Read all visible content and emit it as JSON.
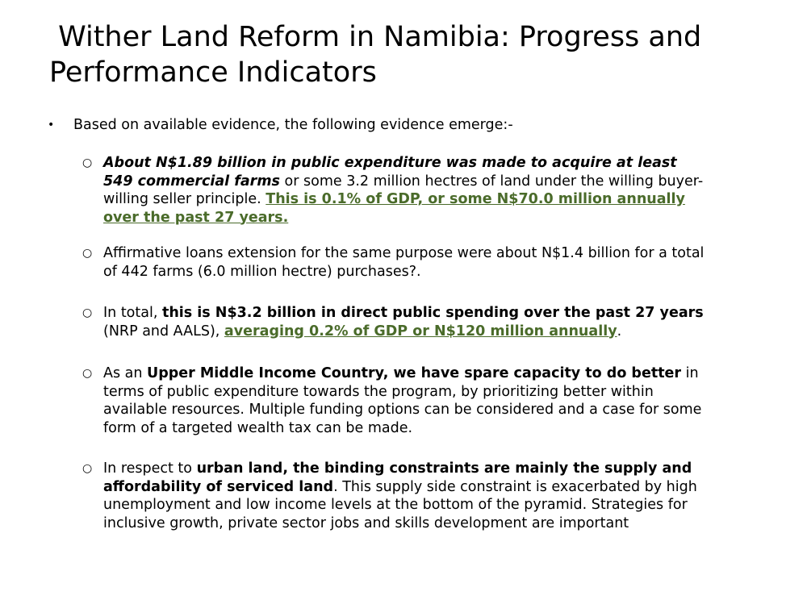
{
  "slide": {
    "title": " Wither Land Reform in Namibia: Progress and Performance Indicators",
    "bullet_marker": "•",
    "sub_marker": "○",
    "intro": "Based on available evidence, the following evidence emerge:-",
    "items": [
      {
        "p1": "About N$1.89 billion in public expenditure was made to acquire at least 549 commercial farms",
        "p2": " or some 3.2 million hectres of land under the willing buyer-willing seller principle.  ",
        "p3": "This is 0.1% of GDP, or some N$70.0 million annually over the past 27 years."
      },
      {
        "p1": "Affirmative loans extension for the same purpose were about N$1.4 billion for a total of 442 farms (6.0 million hectre) purchases?."
      },
      {
        "p1": "In total, ",
        "p2": "this is N$3.2 billion in direct public spending over the past 27 years",
        "p3": " (NRP and AALS), ",
        "p4": "averaging 0.2% of GDP or N$120 million annually",
        "p5": "."
      },
      {
        "p1": "As an ",
        "p2": "Upper Middle Income Country, we have spare capacity to do better",
        "p3": " in terms of public expenditure towards the program, by prioritizing better within available resources. Multiple funding options can be considered and a case for some form of a targeted wealth tax can be made."
      },
      {
        "p1": "In respect to ",
        "p2": "urban land, the binding constraints are mainly the supply and affordability of serviced land",
        "p3": ". This supply side constraint is exacerbated by high unemployment and low income levels at the bottom of the pyramid. Strategies for inclusive growth, private sector jobs and skills development are important"
      }
    ]
  },
  "colors": {
    "text": "#000000",
    "highlight_link": "#4a6b2a",
    "background": "#ffffff"
  }
}
